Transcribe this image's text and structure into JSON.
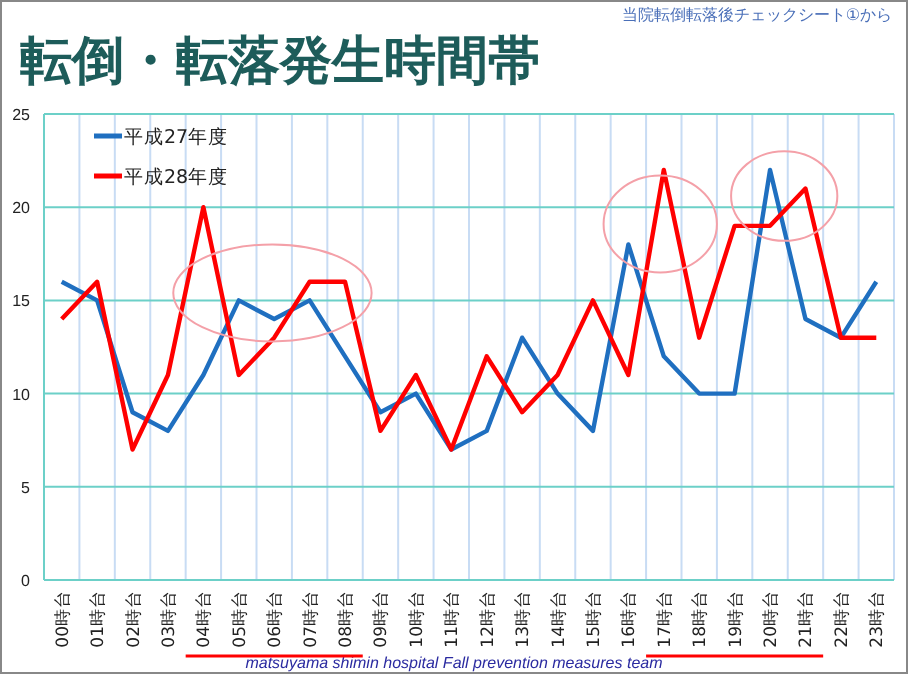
{
  "chart_data": {
    "type": "line",
    "title": "転倒・転落発生時間帯",
    "categories": [
      "00時台",
      "01時台",
      "02時台",
      "03時台",
      "04時台",
      "05時台",
      "06時台",
      "07時台",
      "08時台",
      "09時台",
      "10時台",
      "11時台",
      "12時台",
      "13時台",
      "14時台",
      "15時台",
      "16時台",
      "17時台",
      "18時台",
      "19時台",
      "20時台",
      "21時台",
      "22時台",
      "23時台"
    ],
    "series": [
      {
        "name": "平成27年度",
        "color": "#1f6fc0",
        "values": [
          16,
          15,
          9,
          8,
          11,
          15,
          14,
          15,
          12,
          9,
          10,
          7,
          8,
          13,
          10,
          8,
          18,
          12,
          10,
          10,
          22,
          14,
          13,
          16
        ]
      },
      {
        "name": "平成28年度",
        "color": "#ff0000",
        "values": [
          14,
          16,
          7,
          11,
          20,
          11,
          13,
          16,
          16,
          8,
          11,
          7,
          12,
          9,
          11,
          15,
          11,
          22,
          13,
          19,
          19,
          21,
          13,
          13
        ]
      }
    ],
    "ylim": [
      0,
      25
    ],
    "yticks": [
      0,
      5,
      10,
      15,
      20,
      25
    ],
    "grid": true,
    "legend": "top left",
    "marker": "none",
    "line_style": "solid",
    "annotations": [
      "当院転倒転落後チェックシート①から",
      "matsuyama shimin hospital Fall prevention measures team"
    ]
  }
}
